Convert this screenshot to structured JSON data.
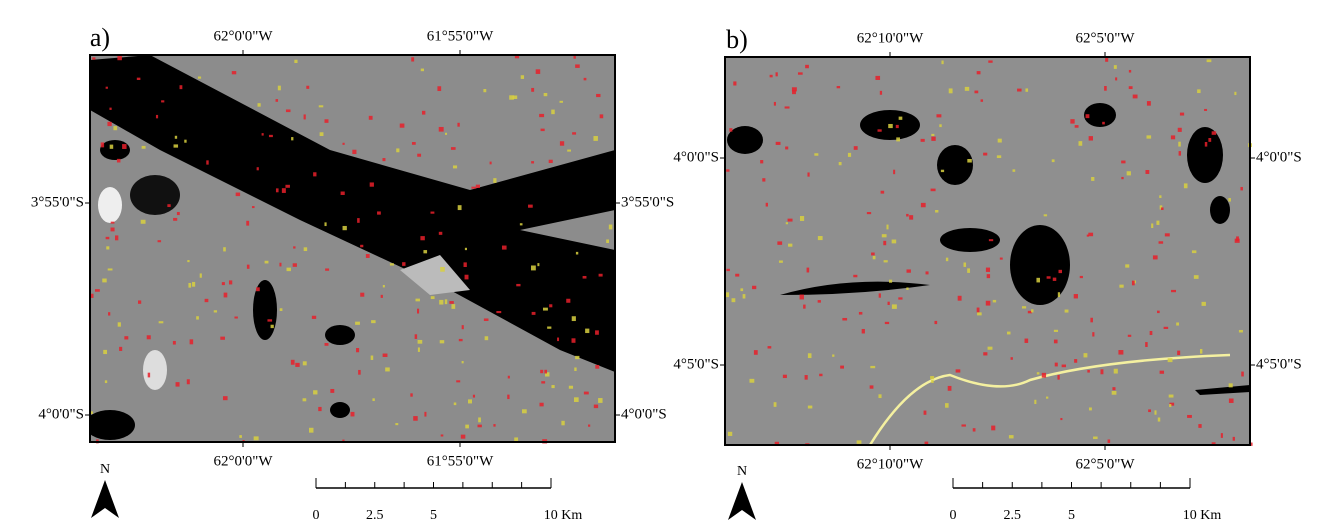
{
  "panels": [
    {
      "label": "a)",
      "top_labels": [
        "62°0'0\"W",
        "61°55'0\"W"
      ],
      "bottom_labels": [
        "62°0'0\"W",
        "61°55'0\"W"
      ],
      "left_labels": [
        "3°55'0\"S",
        "4°0'0\"S"
      ],
      "right_labels": [
        "3°55'0\"S",
        "4°0'0\"S"
      ],
      "north": "N",
      "scale_labels": [
        "0",
        "2.5",
        "5",
        "10 Km"
      ]
    },
    {
      "label": "b)",
      "top_labels": [
        "62°10'0\"W",
        "62°5'0\"W"
      ],
      "bottom_labels": [
        "62°10'0\"W",
        "62°5'0\"W"
      ],
      "left_labels": [
        "4°0'0\"S",
        "4°5'0\"S"
      ],
      "right_labels": [
        "4°0'0\"S",
        "4°5'0\"S"
      ],
      "north": "N",
      "scale_labels": [
        "0",
        "2.5",
        "5",
        "10 Km"
      ]
    }
  ]
}
